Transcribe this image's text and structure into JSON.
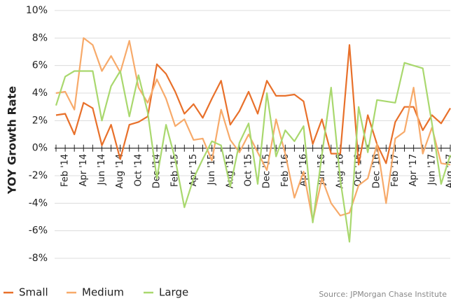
{
  "chart_data": {
    "type": "line",
    "y_label": "YOY Growth Rate",
    "source": "Source: JPMorgan Chase Institute",
    "categories": [
      null,
      "Feb '14",
      null,
      "Apr '14",
      null,
      "Jun '14",
      null,
      "Aug '14",
      null,
      "Oct '14",
      null,
      "Dec '14",
      null,
      "Feb '15",
      null,
      "Apr '15",
      null,
      "Jun '15",
      null,
      "Aug '15",
      null,
      "Oct '15",
      null,
      "Dec '15",
      null,
      "Feb '16",
      null,
      "Apr '16",
      null,
      "Jun '16",
      null,
      "Aug '16",
      null,
      "Oct '16",
      null,
      "Dec '16",
      null,
      "Feb '17",
      null,
      "Apr '17",
      null,
      "Jun '17",
      null,
      "Aug '17"
    ],
    "series": [
      {
        "name": "Small",
        "color": "#e8702a",
        "values": [
          2.4,
          2.5,
          1.0,
          3.3,
          2.9,
          0.2,
          1.7,
          -0.8,
          1.7,
          1.9,
          2.3,
          6.1,
          5.4,
          4.1,
          2.5,
          3.2,
          2.2,
          3.6,
          4.9,
          1.7,
          2.7,
          4.1,
          2.5,
          4.9,
          3.8,
          3.8,
          3.9,
          3.4,
          0.3,
          2.1,
          -0.4,
          -0.4,
          7.5,
          -1.2,
          2.4,
          0.3,
          -1.1,
          1.9,
          3.0,
          3.0,
          1.3,
          2.4,
          1.8,
          2.9
        ]
      },
      {
        "name": "Medium",
        "color": "#f7aa6a",
        "values": [
          4.0,
          4.1,
          2.8,
          8.0,
          7.5,
          5.6,
          6.7,
          5.5,
          7.8,
          4.4,
          3.3,
          5.0,
          3.6,
          1.6,
          2.1,
          0.6,
          0.7,
          -0.9,
          2.8,
          0.6,
          -0.3,
          1.0,
          -0.3,
          -1.6,
          2.1,
          -0.4,
          -3.6,
          -1.7,
          -5.3,
          -2.2,
          -4.0,
          -4.9,
          -4.7,
          -2.7,
          -2.2,
          0.3,
          -4.0,
          0.7,
          1.2,
          4.4,
          -0.4,
          1.5,
          -1.1,
          -1.2
        ]
      },
      {
        "name": "Large",
        "color": "#a9d86e",
        "values": [
          3.1,
          5.2,
          5.6,
          5.6,
          5.6,
          2.0,
          4.5,
          5.6,
          2.3,
          5.3,
          2.6,
          -2.2,
          1.7,
          -0.8,
          -4.3,
          -2.2,
          -0.8,
          0.5,
          0.2,
          -2.8,
          0.4,
          1.8,
          -2.6,
          4.0,
          -0.6,
          1.3,
          0.5,
          1.6,
          -5.4,
          -0.5,
          4.4,
          -2.3,
          -6.8,
          3.0,
          -0.3,
          3.5,
          3.4,
          3.3,
          6.2,
          6.0,
          5.8,
          1.8,
          -2.6,
          -0.5
        ]
      }
    ],
    "ylim": [
      -8,
      10
    ],
    "yticks": [
      {
        "value": -8,
        "label": "-8%"
      },
      {
        "value": -6,
        "label": "-6%"
      },
      {
        "value": -4,
        "label": "-4%"
      },
      {
        "value": -2,
        "label": "-2%"
      },
      {
        "value": 0,
        "label": "0%"
      },
      {
        "value": 2,
        "label": "2%"
      },
      {
        "value": 4,
        "label": "4%"
      },
      {
        "value": 6,
        "label": "6%"
      },
      {
        "value": 8,
        "label": "8%"
      },
      {
        "value": 10,
        "label": "10%"
      }
    ],
    "grid": true
  }
}
